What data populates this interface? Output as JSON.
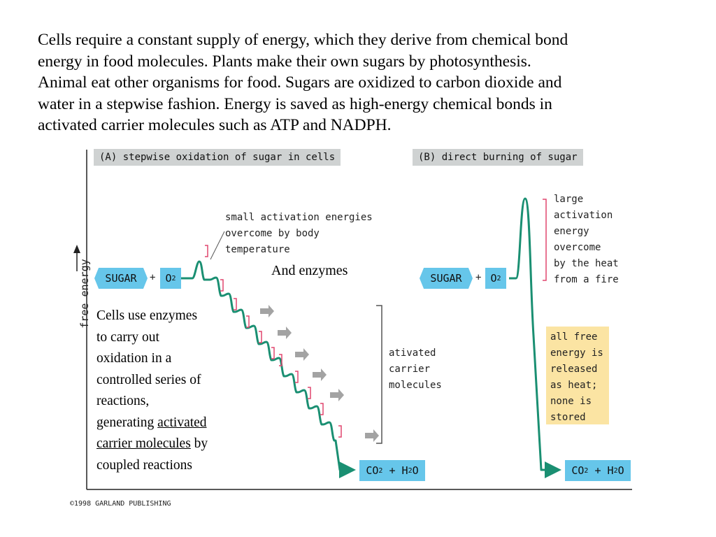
{
  "intro": {
    "lines": [
      "Cells require a constant supply of energy, which they derive from chemical bond",
      "energy in food molecules.  Plants make their own sugars by photosynthesis.",
      "Animal eat other organisms for food.  Sugars are oxidized to carbon dioxide and",
      "water in a stepwise fashion.  Energy is saved as high-energy chemical bonds in",
      "activated carrier molecules such as ATP and NADPH."
    ]
  },
  "figure": {
    "y_axis_label": "free energy",
    "panel_a": {
      "title": "(A)  stepwise oxidation of sugar in cells",
      "sugar": "SUGAR",
      "plus": "+",
      "o2": "O",
      "o2_sub": "2",
      "note_lines": [
        "small activation energies",
        "overcome by body",
        "temperature"
      ],
      "carrier_lines": [
        "ativated",
        "carrier",
        "molecules"
      ],
      "product_co": "CO",
      "product_co_sub": "2",
      "product_plus": " + H",
      "product_h_sub": "2",
      "product_o": "O"
    },
    "panel_b": {
      "title": "(B)  direct burning of sugar",
      "sugar": "SUGAR",
      "plus": "+",
      "o2": "O",
      "o2_sub": "2",
      "note_lines": [
        "large",
        "activation",
        "energy",
        "overcome",
        "by the heat",
        "from a fire"
      ],
      "stored_lines": [
        "all free",
        "energy is",
        "released",
        "as heat;",
        "none is",
        "stored"
      ],
      "product_co": "CO",
      "product_co_sub": "2",
      "product_plus": " + H",
      "product_h_sub": "2",
      "product_o": "O"
    },
    "copyright": "©1998 GARLAND PUBLISHING"
  },
  "annotations": {
    "and_enzymes": "And enzymes",
    "side_lines": [
      "Cells use enzymes",
      "to carry out",
      "oxidation in a",
      "controlled series of",
      "reactions,"
    ],
    "side_generating": "generating ",
    "side_link_1": "activated",
    "side_link_2": "carrier molecules",
    "side_by": " by",
    "side_last": "coupled reactions"
  },
  "colors": {
    "molecule_blue": "#66c6ea",
    "curve_green": "#1a8f72",
    "bracket_pink": "#e0476f",
    "arrow_gray": "#a3a3a3",
    "stored_yellow": "#fbe4a3",
    "title_gray": "#cfd2d2"
  }
}
